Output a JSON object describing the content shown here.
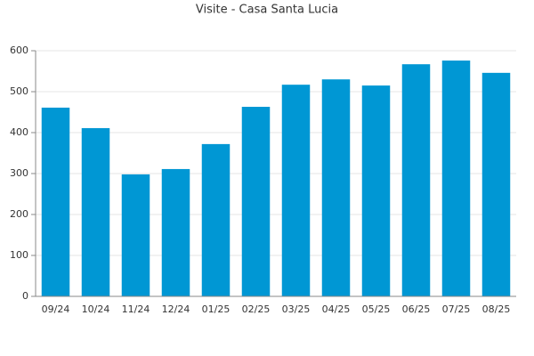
{
  "chart_data": {
    "type": "bar",
    "title": "Visite - Casa Santa Lucia",
    "categories": [
      "09/24",
      "10/24",
      "11/24",
      "12/24",
      "01/25",
      "02/25",
      "03/25",
      "04/25",
      "05/25",
      "06/25",
      "07/25",
      "08/25"
    ],
    "values": [
      461,
      411,
      298,
      311,
      372,
      463,
      517,
      530,
      515,
      567,
      576,
      546
    ],
    "color": "#0097d4",
    "ylim": [
      0,
      600
    ],
    "yticks": [
      0,
      100,
      200,
      300,
      400,
      500,
      600
    ],
    "grid": true
  }
}
